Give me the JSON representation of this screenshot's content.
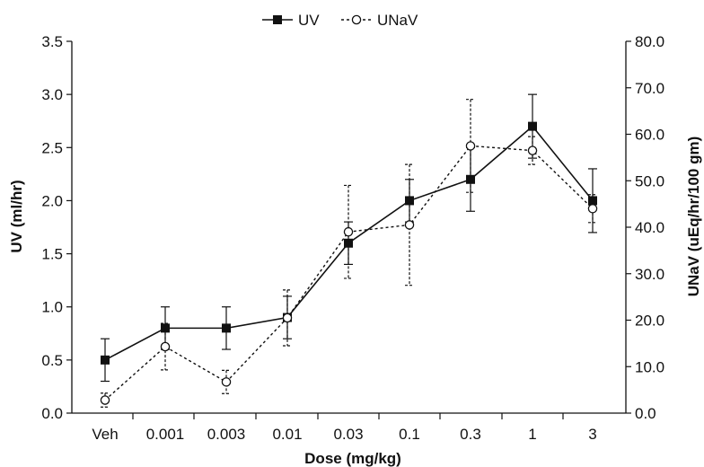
{
  "chart_data": {
    "type": "line",
    "xlabel": "Dose (mg/kg)",
    "ylabel_left": "UV (ml/hr)",
    "ylabel_right": "UNaV (uEq/hr/100 gm)",
    "categories": [
      "Veh",
      "0.001",
      "0.003",
      "0.01",
      "0.03",
      "0.1",
      "0.3",
      "1",
      "3"
    ],
    "ylim_left": [
      0,
      3.5
    ],
    "yticks_left": [
      "0.0",
      "0.5",
      "1.0",
      "1.5",
      "2.0",
      "2.5",
      "3.0",
      "3.5"
    ],
    "ylim_right": [
      0,
      80
    ],
    "yticks_right": [
      "0.0",
      "10.0",
      "20.0",
      "30.0",
      "40.0",
      "50.0",
      "60.0",
      "70.0",
      "80.0"
    ],
    "legend_position": "top",
    "grid": false,
    "series": [
      {
        "name": "UV",
        "axis": "left",
        "marker": "filled-square",
        "line_style": "solid",
        "values": [
          0.5,
          0.8,
          0.8,
          0.9,
          1.6,
          2.0,
          2.2,
          2.7,
          2.0
        ],
        "error": [
          0.2,
          0.2,
          0.2,
          0.2,
          0.2,
          0.2,
          0.3,
          0.3,
          0.3
        ]
      },
      {
        "name": "UNaV",
        "axis": "right",
        "marker": "open-circle",
        "line_style": "dotted",
        "values": [
          2.8,
          14.3,
          6.7,
          20.5,
          39.0,
          40.5,
          57.5,
          56.5,
          44.0
        ],
        "error": [
          1.5,
          5.0,
          2.5,
          6.0,
          10.0,
          13.0,
          10.0,
          3.0,
          3.0
        ]
      }
    ]
  }
}
